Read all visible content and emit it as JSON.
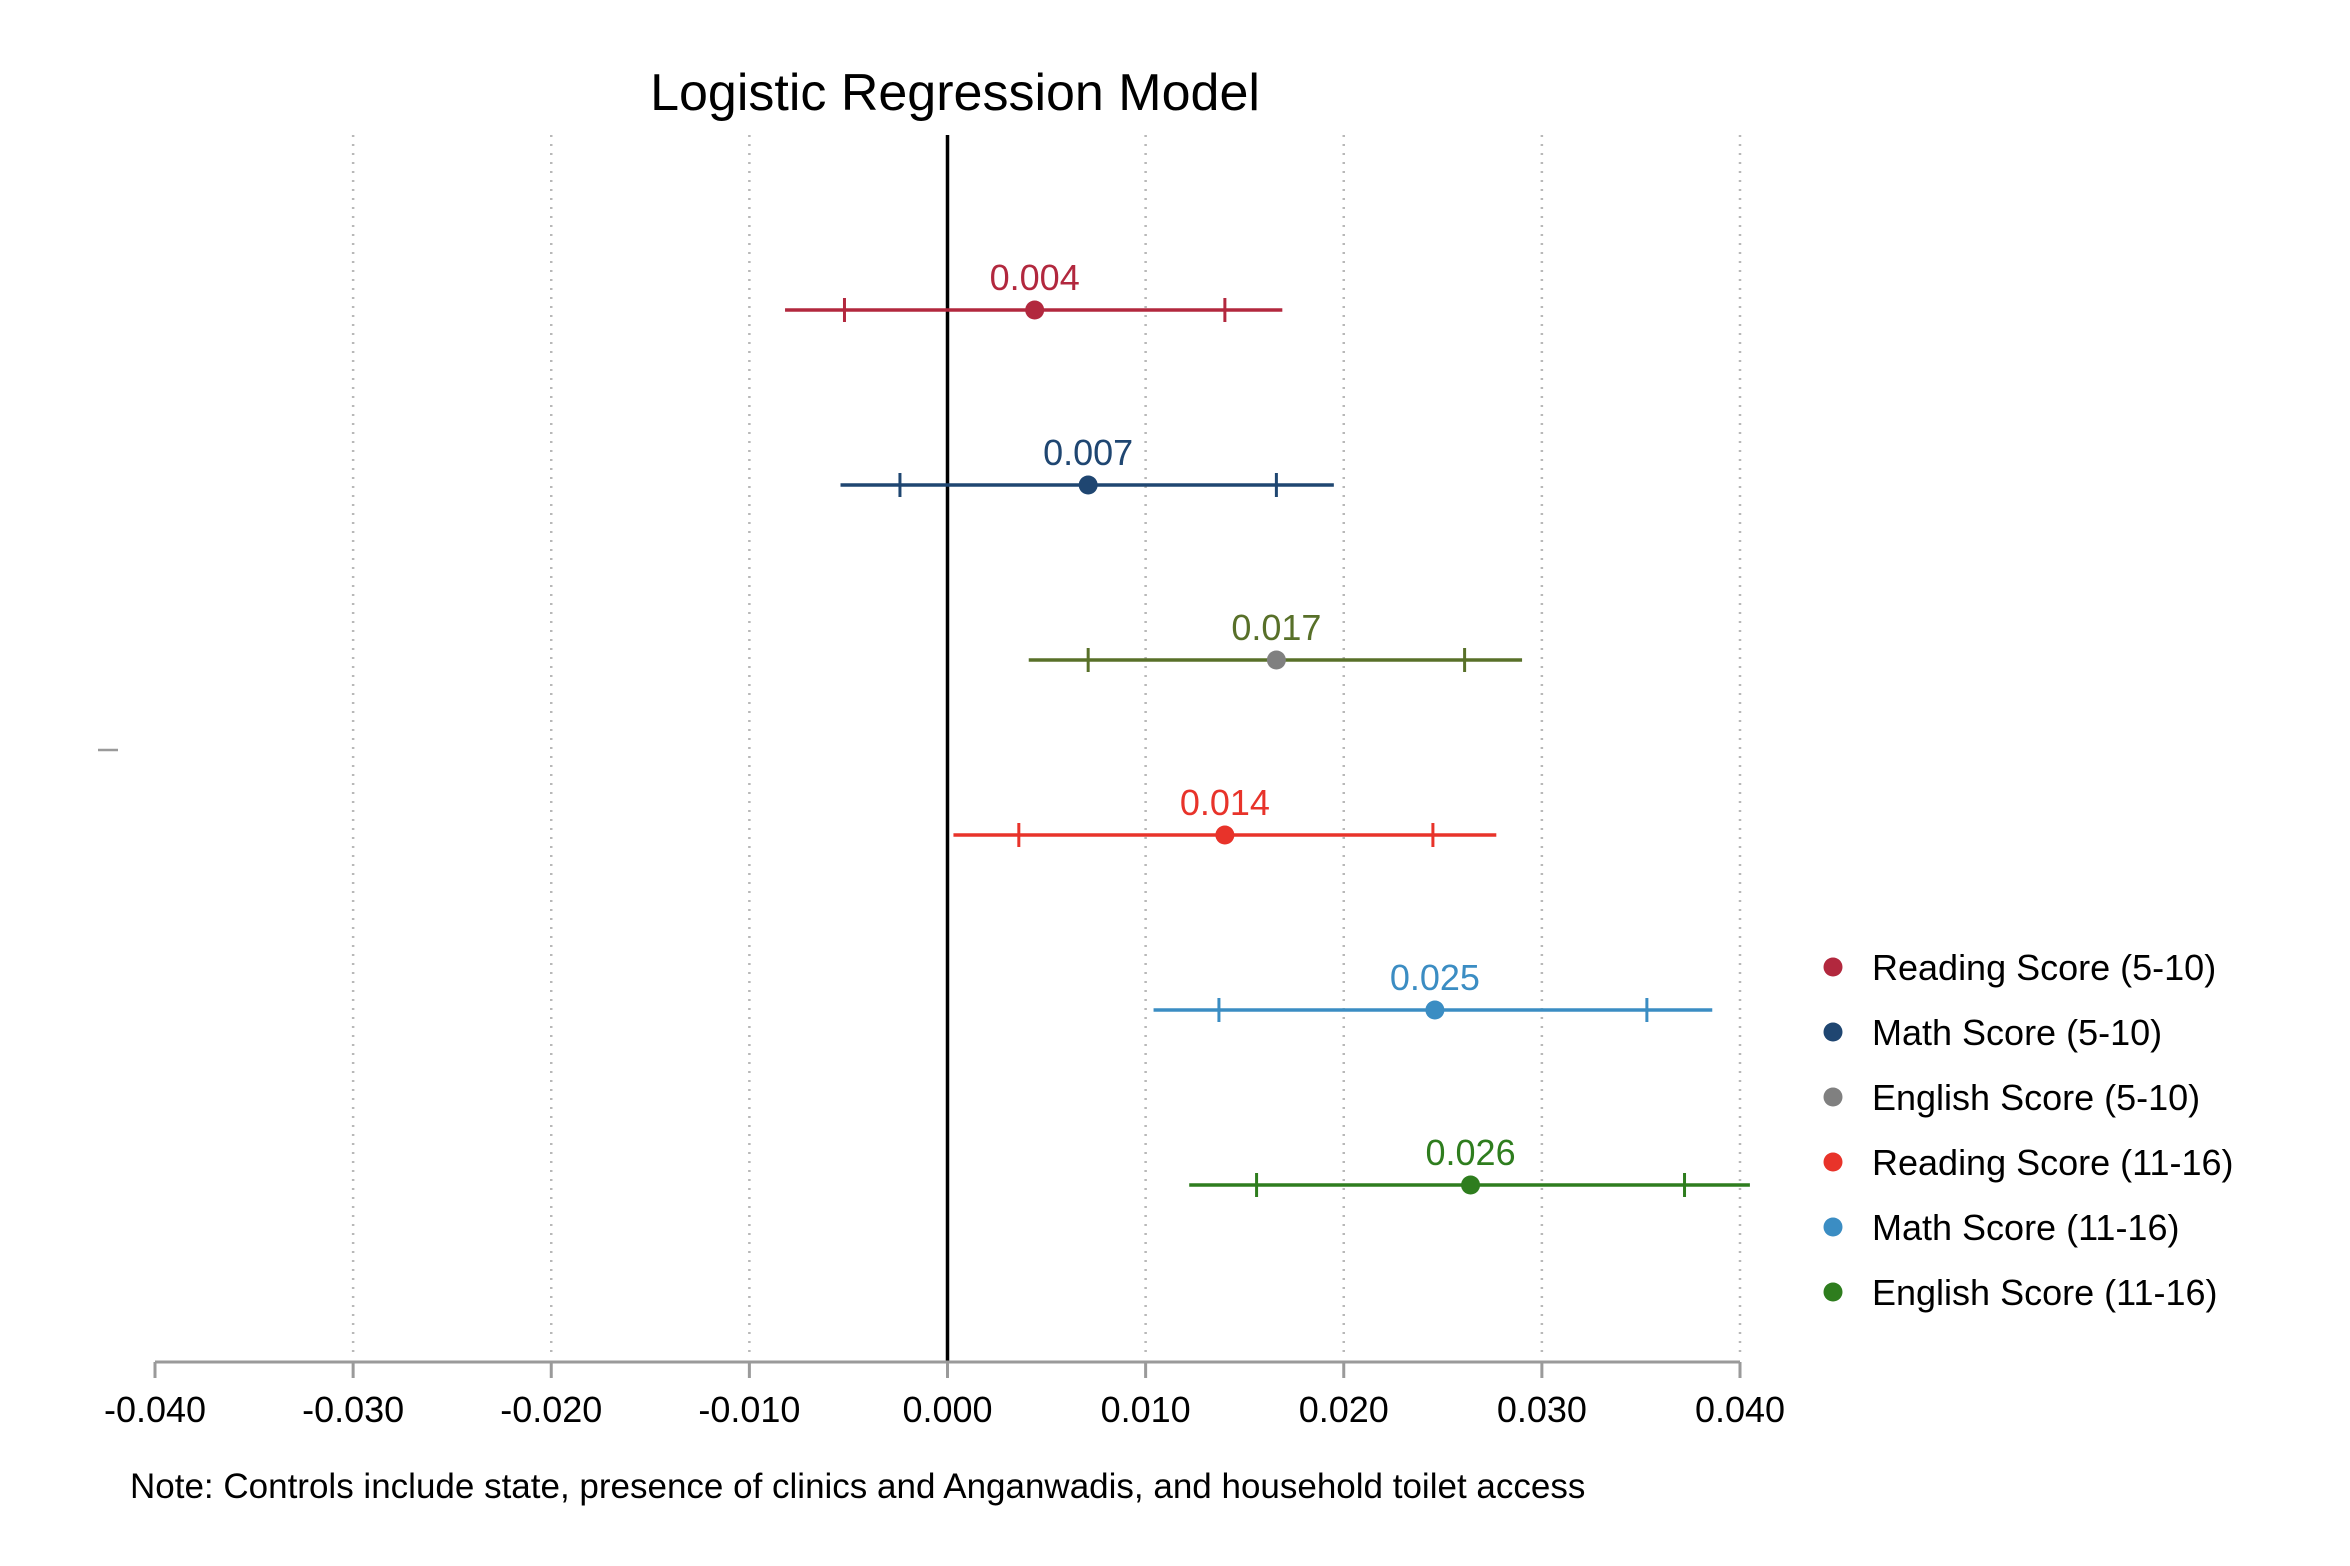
{
  "chart_data": {
    "type": "coefficient-plot",
    "title": "Logistic Regression Model",
    "note": "Note: Controls include state, presence of clinics and Anganwadis, and household toilet access",
    "xlim": [
      -0.04,
      0.04
    ],
    "x_ticks": [
      -0.04,
      -0.03,
      -0.02,
      -0.01,
      0.0,
      0.01,
      0.02,
      0.03,
      0.04
    ],
    "x_tick_labels": [
      "-0.040",
      "-0.030",
      "-0.020",
      "-0.010",
      "0.000",
      "0.010",
      "0.020",
      "0.030",
      "0.040"
    ],
    "reference_line": 0.0,
    "grid": "vertical dotted",
    "legend_position": "right",
    "series": [
      {
        "name": "Reading Score (5-10)",
        "estimate": 0.0044,
        "label": "0.004",
        "ci90": [
          -0.0052,
          0.014
        ],
        "ci95": [
          -0.0082,
          0.0169
        ],
        "color": "#b2283e",
        "marker_color": "#b2283e"
      },
      {
        "name": "Math Score (5-10)",
        "estimate": 0.0071,
        "label": "0.007",
        "ci90": [
          -0.0024,
          0.0166
        ],
        "ci95": [
          -0.0054,
          0.0195
        ],
        "color": "#1f4671",
        "marker_color": "#1f4671"
      },
      {
        "name": "English Score (5-10)",
        "estimate": 0.0166,
        "label": "0.017",
        "ci90": [
          0.0071,
          0.0261
        ],
        "ci95": [
          0.0041,
          0.029
        ],
        "color": "#587029",
        "marker_color": "#808080"
      },
      {
        "name": "Reading Score (11-16)",
        "estimate": 0.014,
        "label": "0.014",
        "ci90": [
          0.0036,
          0.0245
        ],
        "ci95": [
          0.0003,
          0.0277
        ],
        "color": "#e8332a",
        "marker_color": "#e8332a"
      },
      {
        "name": "Math Score (11-16)",
        "estimate": 0.0246,
        "label": "0.025",
        "ci90": [
          0.0137,
          0.0353
        ],
        "ci95": [
          0.0104,
          0.0386
        ],
        "color": "#3b8dc3",
        "marker_color": "#3b8dc3"
      },
      {
        "name": "English Score (11-16)",
        "estimate": 0.0264,
        "label": "0.026",
        "ci90": [
          0.0156,
          0.0372
        ],
        "ci95": [
          0.0122,
          0.0405
        ],
        "color": "#2e7d1e",
        "marker_color": "#2e7d1e"
      }
    ]
  }
}
